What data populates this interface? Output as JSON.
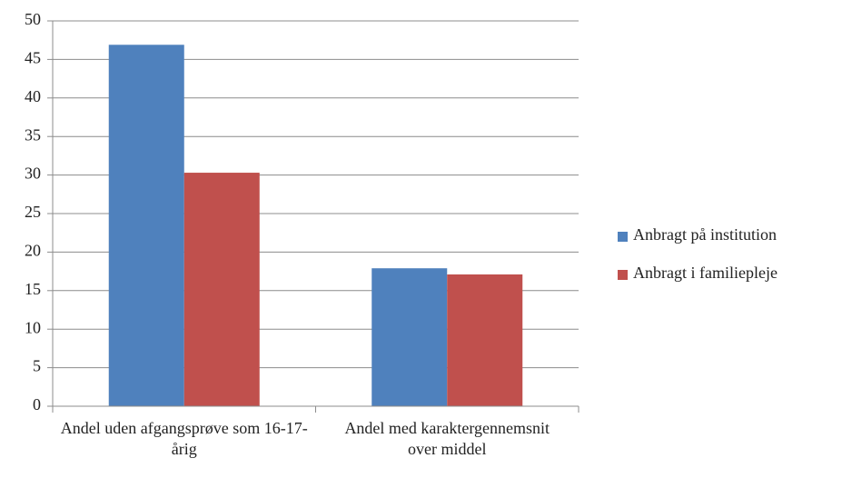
{
  "chart_data": {
    "type": "bar",
    "categories": [
      "Andel uden afgangsprøve som 16-17-årig",
      "Andel med karaktergennemsnit over middel"
    ],
    "series": [
      {
        "name": "Anbragt på institution",
        "color": "#4f81bd",
        "values": [
          46.9,
          17.9
        ]
      },
      {
        "name": "Anbragt i familiepleje",
        "color": "#c0504d",
        "values": [
          30.3,
          17.1
        ]
      }
    ],
    "ylim": [
      0,
      50
    ],
    "yticks": [
      0,
      5,
      10,
      15,
      20,
      25,
      30,
      35,
      40,
      45,
      50
    ],
    "grid": true,
    "legend": "right"
  }
}
